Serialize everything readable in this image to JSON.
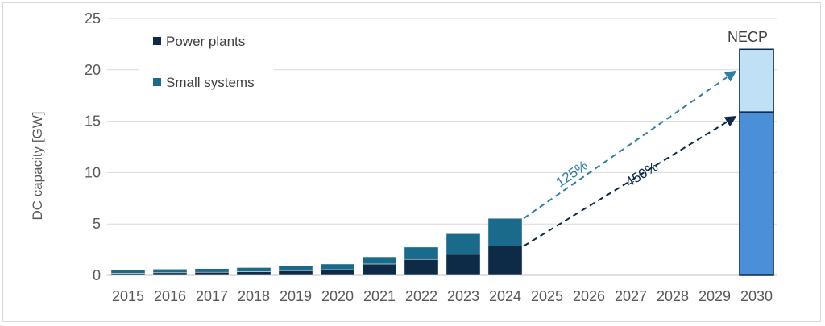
{
  "chart_data": {
    "type": "bar",
    "stacked": true,
    "ylabel": "DC capacity [GW]",
    "ylim": [
      0,
      25
    ],
    "yticks": [
      "0",
      "5",
      "10",
      "15",
      "20",
      "25"
    ],
    "grid": true,
    "legend_position": "top-left",
    "categories": [
      "2015",
      "2016",
      "2017",
      "2018",
      "2019",
      "2020",
      "2021",
      "2022",
      "2023",
      "2024",
      "2025",
      "2026",
      "2027",
      "2028",
      "2029",
      "2030"
    ],
    "series": [
      {
        "name": "Power plants",
        "color": "#0d2a47",
        "values": [
          0.2,
          0.25,
          0.3,
          0.35,
          0.45,
          0.55,
          1.1,
          1.55,
          2.05,
          2.85,
          null,
          null,
          null,
          null,
          null,
          null
        ]
      },
      {
        "name": "Small systems",
        "color": "#1a6a8c",
        "values": [
          0.3,
          0.35,
          0.35,
          0.4,
          0.5,
          0.55,
          0.7,
          1.2,
          2.0,
          2.7,
          null,
          null,
          null,
          null,
          null,
          null
        ]
      }
    ],
    "target": {
      "category": "2030",
      "label": "NECP",
      "power_plants": 15.9,
      "small_systems": 6.1,
      "power_plants_color": "#4a90d9",
      "small_systems_color": "#bfe0f5"
    },
    "annotations": [
      {
        "text": "125%",
        "color": "#2e7fa6",
        "from_category": "2024",
        "from_value": 5.55,
        "to_value": 19.8
      },
      {
        "text": "450%",
        "color": "#0d2a47",
        "from_category": "2024",
        "from_value": 2.85,
        "to_value": 15.4
      }
    ]
  }
}
